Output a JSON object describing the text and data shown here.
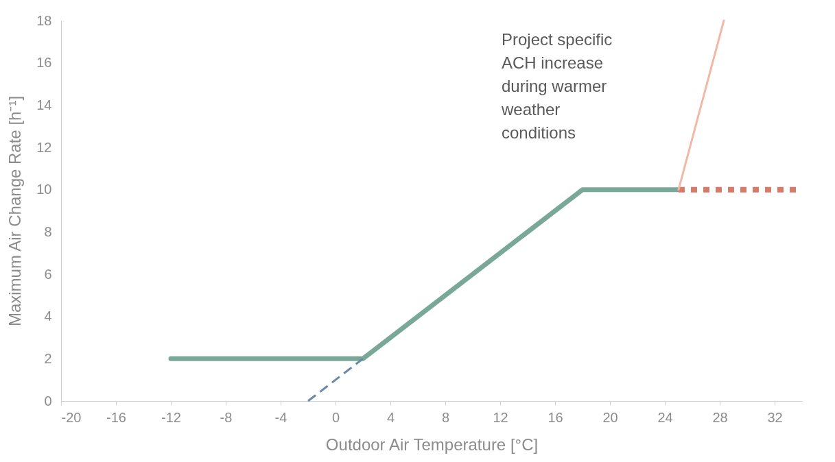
{
  "chart_data": {
    "type": "line",
    "xlabel": "Outdoor Air Temperature [°C]",
    "ylabel": "Maximum Air Change Rate [h⁻¹]",
    "xlim": [
      -20,
      34
    ],
    "xticks": [
      -20,
      -16,
      -12,
      -8,
      -4,
      0,
      4,
      8,
      12,
      16,
      20,
      24,
      28,
      32
    ],
    "ylim": [
      0,
      18
    ],
    "yticks": [
      0,
      2,
      4,
      6,
      8,
      10,
      12,
      14,
      16,
      18
    ],
    "series": [
      {
        "color": "#7aa898",
        "x": [
          -12,
          2,
          18,
          25
        ],
        "values": [
          2,
          2,
          10,
          10
        ],
        "line_style": "solid"
      },
      {
        "color": "#6a88a8",
        "x": [
          -2,
          2
        ],
        "values": [
          0,
          2
        ],
        "line_style": "dashed"
      },
      {
        "color": "#d97a68",
        "x": [
          25,
          34
        ],
        "values": [
          10,
          10
        ],
        "line_style": "dotted"
      },
      {
        "color": "#f2b8a6",
        "x": [
          25,
          28.3
        ],
        "values": [
          10,
          18
        ],
        "line_style": "solid"
      }
    ],
    "annotations": [
      "Project specific ACH increase during warmer weather conditions"
    ],
    "grid": false,
    "marker": "none"
  }
}
